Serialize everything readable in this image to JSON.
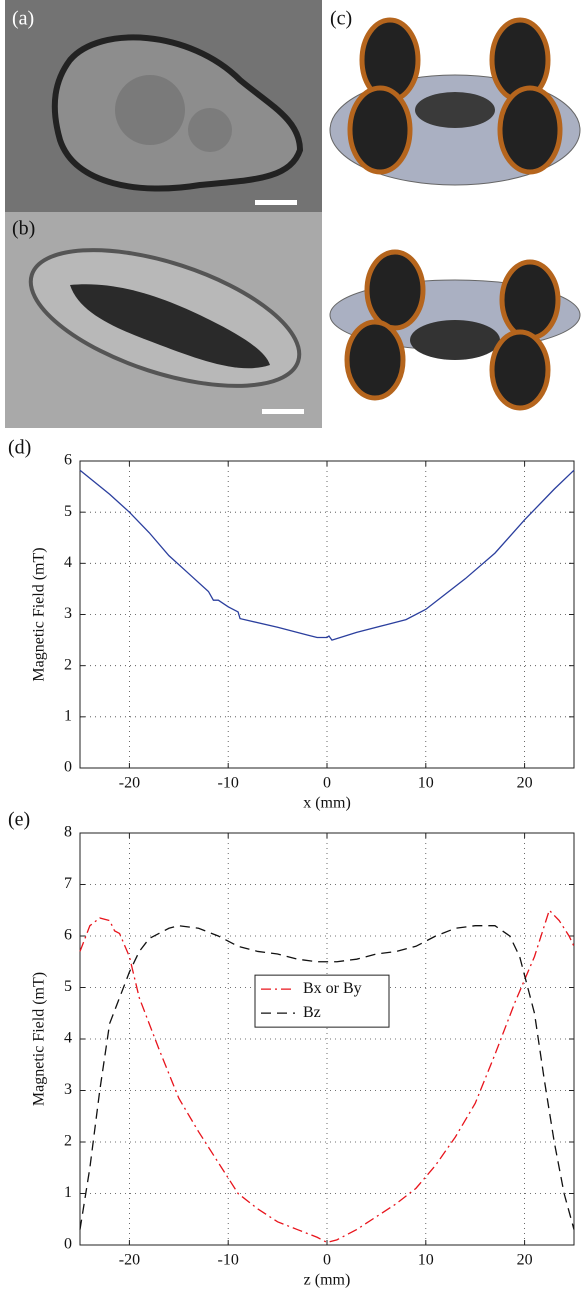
{
  "panels": {
    "a": "(a)",
    "b": "(b)",
    "c": "(c)"
  },
  "chart_data": [
    {
      "type": "line",
      "panel_label": "(d)",
      "xlabel": "x (mm)",
      "ylabel": "Magnetic Field (mT)",
      "xlim": [
        -25,
        25
      ],
      "xticks": [
        -20,
        -10,
        0,
        10,
        20
      ],
      "ylim": [
        0,
        6
      ],
      "yticks": [
        0,
        1,
        2,
        3,
        4,
        5,
        6
      ],
      "grid": true,
      "series": [
        {
          "color": "#2b3f9e",
          "style": "solid",
          "x": [
            -25,
            -22,
            -20,
            -18,
            -16,
            -14,
            -12,
            -11.5,
            -11,
            -10,
            -9,
            -8.8,
            -5,
            -2,
            -1,
            0,
            0.2,
            0.5,
            3,
            6,
            8,
            10,
            12,
            14,
            17,
            20,
            23,
            25
          ],
          "values": [
            5.82,
            5.35,
            5.0,
            4.6,
            4.15,
            3.8,
            3.45,
            3.28,
            3.28,
            3.15,
            3.05,
            2.92,
            2.75,
            2.6,
            2.55,
            2.55,
            2.58,
            2.5,
            2.65,
            2.8,
            2.9,
            3.1,
            3.4,
            3.7,
            4.2,
            4.85,
            5.45,
            5.82
          ]
        }
      ]
    },
    {
      "type": "line",
      "panel_label": "(e)",
      "xlabel": "z (mm)",
      "ylabel": "Magnetic Field (mT)",
      "xlim": [
        -25,
        25
      ],
      "xticks": [
        -20,
        -10,
        0,
        10,
        20
      ],
      "ylim": [
        0,
        8
      ],
      "yticks": [
        0,
        1,
        2,
        3,
        4,
        5,
        6,
        7,
        8
      ],
      "grid": true,
      "legend": "center",
      "series": [
        {
          "name": "Bx or By",
          "color": "#e8141c",
          "style": "dash-dot",
          "x": [
            -25,
            -24,
            -23,
            -22,
            -21.5,
            -21,
            -20,
            -19,
            -17,
            -15,
            -13,
            -11,
            -9,
            -7,
            -5,
            -3,
            -1,
            0,
            1,
            3,
            5,
            7,
            9,
            11,
            13,
            15,
            17,
            19,
            21,
            22.5,
            23.5,
            24.5,
            25
          ],
          "values": [
            5.7,
            6.2,
            6.35,
            6.3,
            6.1,
            6.05,
            5.6,
            4.8,
            3.8,
            2.85,
            2.2,
            1.6,
            1.0,
            0.7,
            0.45,
            0.3,
            0.15,
            0.05,
            0.1,
            0.3,
            0.55,
            0.8,
            1.1,
            1.55,
            2.1,
            2.75,
            3.7,
            4.7,
            5.6,
            6.5,
            6.3,
            6.0,
            5.8
          ]
        },
        {
          "name": "Bz",
          "color": "#111111",
          "style": "dashed",
          "x": [
            -25,
            -24,
            -23,
            -22,
            -20,
            -19,
            -18,
            -16,
            -15,
            -13,
            -11,
            -9,
            -7,
            -5,
            -3,
            -1,
            1,
            3,
            5,
            7,
            9,
            11,
            13,
            15,
            17,
            18.5,
            19.5,
            21,
            22,
            23,
            24,
            25
          ],
          "values": [
            0.3,
            1.5,
            3.0,
            4.3,
            5.3,
            5.7,
            5.95,
            6.15,
            6.2,
            6.15,
            6.0,
            5.8,
            5.7,
            5.65,
            5.55,
            5.5,
            5.5,
            5.55,
            5.65,
            5.7,
            5.8,
            6.0,
            6.15,
            6.2,
            6.2,
            6.0,
            5.6,
            4.5,
            3.2,
            2.0,
            1.0,
            0.3
          ]
        }
      ]
    }
  ]
}
